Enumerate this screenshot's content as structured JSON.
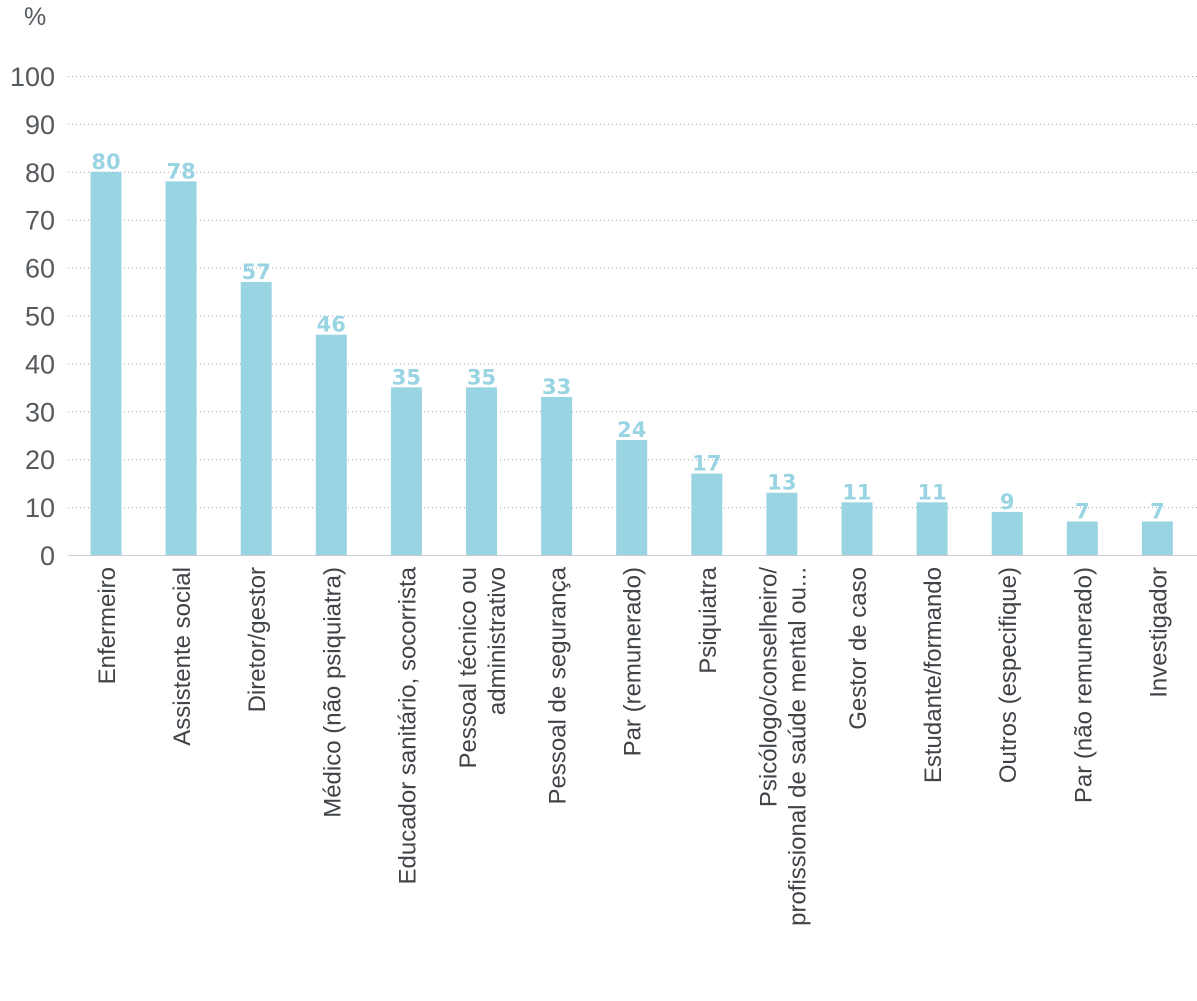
{
  "chart_data": {
    "type": "bar",
    "title": "",
    "xlabel": "",
    "ylabel": "%",
    "ylim": [
      0,
      100
    ],
    "yticks": [
      0,
      10,
      20,
      30,
      40,
      50,
      60,
      70,
      80,
      90,
      100
    ],
    "grid": true,
    "legend": "none",
    "bar_color": "#99d4e2",
    "label_color": "#99d4e2",
    "categories": [
      [
        "Enfermeiro"
      ],
      [
        "Assistente social"
      ],
      [
        "Diretor/gestor"
      ],
      [
        "Médico (não psiquiatra)"
      ],
      [
        "Educador sanitário, socorrista"
      ],
      [
        "Pessoal técnico ou",
        "administrativo"
      ],
      [
        "Pessoal de segurança"
      ],
      [
        "Par (remunerado)"
      ],
      [
        "Psiquiatra"
      ],
      [
        "Psicólogo/conselheiro/",
        "profissional de saúde mental ou..."
      ],
      [
        "Gestor de caso"
      ],
      [
        "Estudante/formando"
      ],
      [
        "Outros (especifique)"
      ],
      [
        "Par (não remunerado)"
      ],
      [
        "Investigador"
      ]
    ],
    "values": [
      80,
      78,
      57,
      46,
      35,
      35,
      33,
      24,
      17,
      13,
      11,
      11,
      9,
      7,
      7
    ]
  }
}
